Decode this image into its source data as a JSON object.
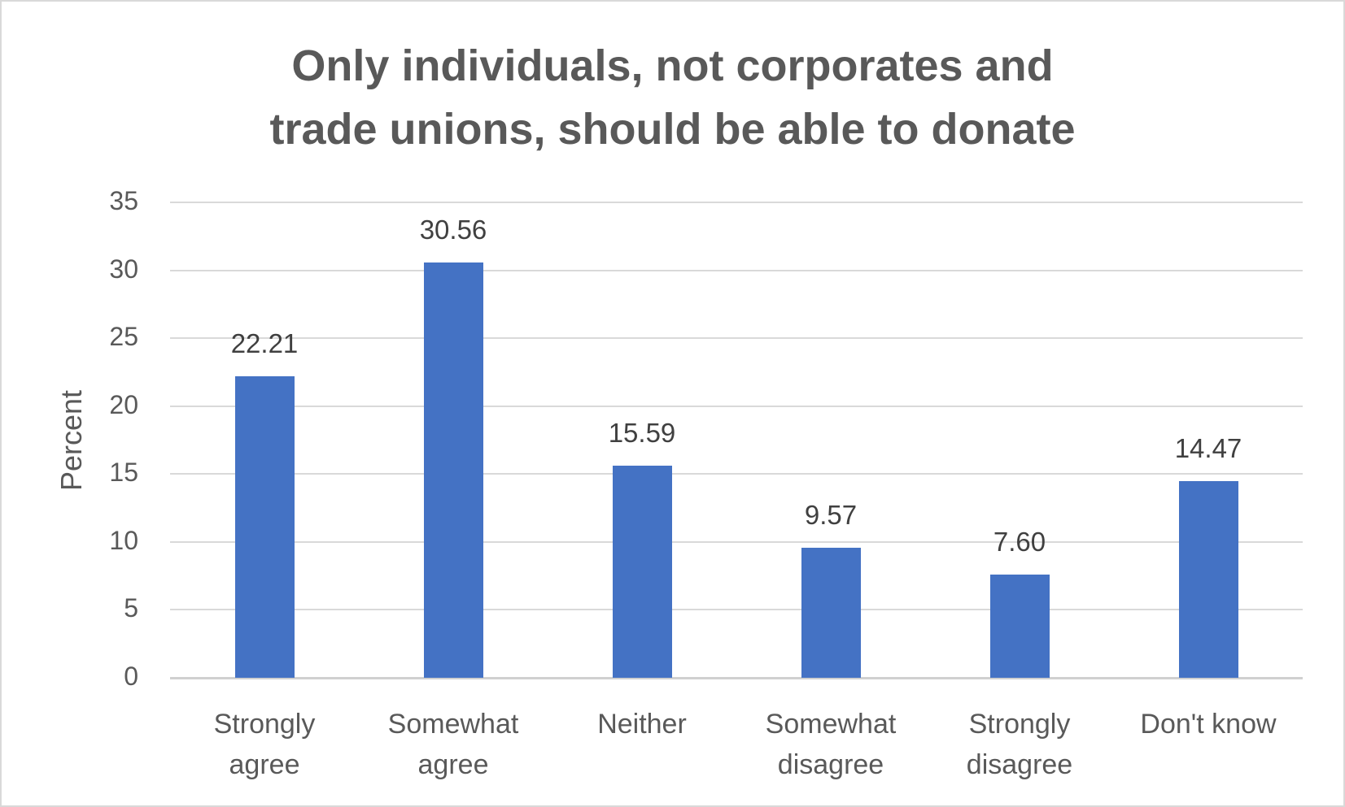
{
  "chart_data": {
    "type": "bar",
    "title": "Only individuals, not corporates and trade unions, should be able to donate",
    "title_lines": [
      "Only individuals, not corporates and",
      "trade unions, should be able to donate"
    ],
    "xlabel": "",
    "ylabel": "Percent",
    "ylim": [
      0,
      35
    ],
    "yticks": [
      0,
      5,
      10,
      15,
      20,
      25,
      30,
      35
    ],
    "grid": true,
    "legend": null,
    "bar_color": "#4472c4",
    "categories": [
      "Strongly agree",
      "Somewhat agree",
      "Neither",
      "Somewhat disagree",
      "Strongly disagree",
      "Don't know"
    ],
    "category_lines": [
      [
        "Strongly",
        "agree"
      ],
      [
        "Somewhat",
        "agree"
      ],
      [
        "Neither",
        ""
      ],
      [
        "Somewhat",
        "disagree"
      ],
      [
        "Strongly",
        "disagree"
      ],
      [
        "Don't know",
        ""
      ]
    ],
    "values": [
      22.21,
      30.56,
      15.59,
      9.57,
      7.6,
      14.47
    ],
    "value_labels": [
      "22.21",
      "30.56",
      "15.59",
      "9.57",
      "7.60",
      "14.47"
    ]
  }
}
